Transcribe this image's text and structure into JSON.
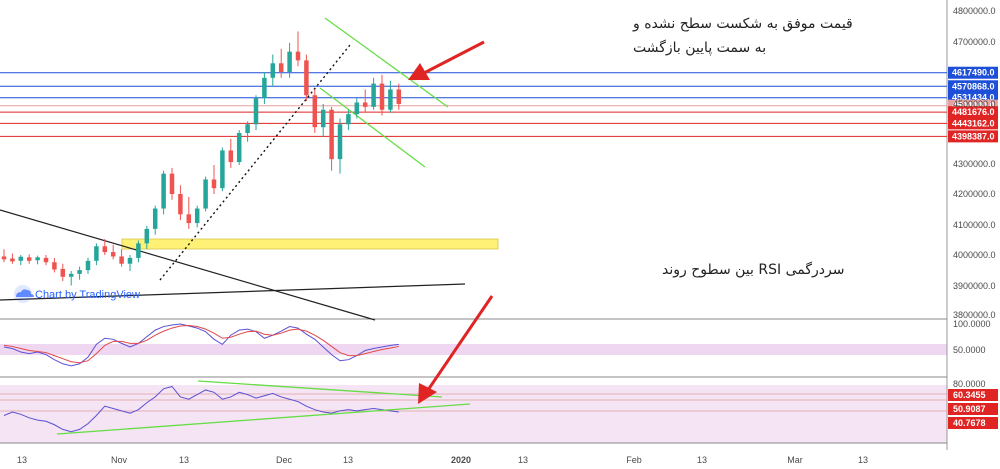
{
  "chart_data": [
    {
      "type": "candlestick",
      "title": "",
      "ylim": [
        3780000,
        4830000
      ],
      "y_ticks": [
        "4800000.0",
        "4700000.0",
        "4600000.0",
        "4500000.0",
        "4400000.0",
        "4300000.0",
        "4200000.0",
        "4100000.0",
        "4000000.0",
        "3900000.0",
        "3800000.0"
      ],
      "x_ticks": [
        "13",
        "Nov",
        "13",
        "Dec",
        "13",
        "2020",
        "13",
        "Feb",
        "13",
        "Mar",
        "13"
      ],
      "grid": false,
      "resistance_levels": [
        {
          "label": "4617490.0",
          "value": 4617490,
          "color": "#1e4fd8"
        },
        {
          "label": "4570868.0",
          "value": 4570868,
          "color": "#1e4fd8"
        },
        {
          "label": "4531434.0",
          "value": 4531434,
          "color": "#1e4fd8"
        },
        {
          "label": "4504000.0",
          "value": 4504000,
          "color": "#e8a0a0"
        }
      ],
      "support_levels": [
        {
          "label": "4481676.0",
          "value": 4481676,
          "color": "#e02424"
        },
        {
          "label": "4443162.0",
          "value": 4443162,
          "color": "#e02424"
        },
        {
          "label": "4398387.0",
          "value": 4398387,
          "color": "#e02424"
        }
      ],
      "candles": [
        {
          "o": 3985000,
          "h": 4010000,
          "l": 3965000,
          "c": 3975000
        },
        {
          "o": 3978000,
          "h": 3995000,
          "l": 3960000,
          "c": 3968000
        },
        {
          "o": 3970000,
          "h": 3990000,
          "l": 3955000,
          "c": 3984000
        },
        {
          "o": 3982000,
          "h": 3992000,
          "l": 3960000,
          "c": 3970000
        },
        {
          "o": 3972000,
          "h": 3988000,
          "l": 3958000,
          "c": 3982000
        },
        {
          "o": 3980000,
          "h": 3990000,
          "l": 3955000,
          "c": 3965000
        },
        {
          "o": 3965000,
          "h": 3980000,
          "l": 3930000,
          "c": 3940000
        },
        {
          "o": 3942000,
          "h": 3960000,
          "l": 3900000,
          "c": 3915000
        },
        {
          "o": 3915000,
          "h": 3935000,
          "l": 3885000,
          "c": 3925000
        },
        {
          "o": 3925000,
          "h": 3950000,
          "l": 3905000,
          "c": 3938000
        },
        {
          "o": 3938000,
          "h": 3980000,
          "l": 3925000,
          "c": 3970000
        },
        {
          "o": 3970000,
          "h": 4030000,
          "l": 3955000,
          "c": 4020000
        },
        {
          "o": 4020000,
          "h": 4045000,
          "l": 3990000,
          "c": 4000000
        },
        {
          "o": 4000000,
          "h": 4025000,
          "l": 3975000,
          "c": 3985000
        },
        {
          "o": 3985000,
          "h": 4010000,
          "l": 3950000,
          "c": 3960000
        },
        {
          "o": 3960000,
          "h": 3990000,
          "l": 3935000,
          "c": 3980000
        },
        {
          "o": 3980000,
          "h": 4040000,
          "l": 3965000,
          "c": 4030000
        },
        {
          "o": 4030000,
          "h": 4090000,
          "l": 4010000,
          "c": 4080000
        },
        {
          "o": 4080000,
          "h": 4160000,
          "l": 4060000,
          "c": 4150000
        },
        {
          "o": 4150000,
          "h": 4280000,
          "l": 4130000,
          "c": 4270000
        },
        {
          "o": 4270000,
          "h": 4290000,
          "l": 4180000,
          "c": 4200000
        },
        {
          "o": 4200000,
          "h": 4230000,
          "l": 4110000,
          "c": 4130000
        },
        {
          "o": 4130000,
          "h": 4190000,
          "l": 4080000,
          "c": 4100000
        },
        {
          "o": 4100000,
          "h": 4160000,
          "l": 4085000,
          "c": 4150000
        },
        {
          "o": 4150000,
          "h": 4260000,
          "l": 4140000,
          "c": 4250000
        },
        {
          "o": 4250000,
          "h": 4300000,
          "l": 4200000,
          "c": 4220000
        },
        {
          "o": 4220000,
          "h": 4360000,
          "l": 4210000,
          "c": 4350000
        },
        {
          "o": 4350000,
          "h": 4390000,
          "l": 4290000,
          "c": 4310000
        },
        {
          "o": 4310000,
          "h": 4420000,
          "l": 4300000,
          "c": 4410000
        },
        {
          "o": 4410000,
          "h": 4450000,
          "l": 4380000,
          "c": 4440000
        },
        {
          "o": 4440000,
          "h": 4540000,
          "l": 4420000,
          "c": 4530000
        },
        {
          "o": 4530000,
          "h": 4620000,
          "l": 4510000,
          "c": 4600000
        },
        {
          "o": 4600000,
          "h": 4680000,
          "l": 4570000,
          "c": 4650000
        },
        {
          "o": 4650000,
          "h": 4700000,
          "l": 4600000,
          "c": 4620000
        },
        {
          "o": 4620000,
          "h": 4720000,
          "l": 4600000,
          "c": 4690000
        },
        {
          "o": 4690000,
          "h": 4760000,
          "l": 4640000,
          "c": 4660000
        },
        {
          "o": 4660000,
          "h": 4680000,
          "l": 4520000,
          "c": 4540000
        },
        {
          "o": 4540000,
          "h": 4560000,
          "l": 4410000,
          "c": 4430000
        },
        {
          "o": 4430000,
          "h": 4510000,
          "l": 4400000,
          "c": 4490000
        },
        {
          "o": 4490000,
          "h": 4500000,
          "l": 4280000,
          "c": 4320000
        },
        {
          "o": 4320000,
          "h": 4460000,
          "l": 4270000,
          "c": 4440000
        },
        {
          "o": 4440000,
          "h": 4490000,
          "l": 4420000,
          "c": 4475000
        },
        {
          "o": 4475000,
          "h": 4530000,
          "l": 4460000,
          "c": 4515000
        },
        {
          "o": 4515000,
          "h": 4560000,
          "l": 4480000,
          "c": 4500000
        },
        {
          "o": 4500000,
          "h": 4600000,
          "l": 4490000,
          "c": 4580000
        },
        {
          "o": 4580000,
          "h": 4610000,
          "l": 4470000,
          "c": 4490000
        },
        {
          "o": 4490000,
          "h": 4590000,
          "l": 4480000,
          "c": 4560000
        },
        {
          "o": 4560000,
          "h": 4580000,
          "l": 4490000,
          "c": 4510000
        }
      ],
      "annotations": [
        "قیمت موفق به شکست سطح نشده و",
        "به سمت پایین بازگشت",
        "سردرگمی RSI بین سطوح روند"
      ],
      "watermark": "Chart by TradingView"
    },
    {
      "type": "line",
      "ylim": [
        0,
        100
      ],
      "y_ticks": [
        "100.0000",
        "50.0000"
      ],
      "series": [
        {
          "color": "#5b4fd6",
          "values": [
            55,
            52,
            45,
            42,
            45,
            40,
            30,
            22,
            18,
            22,
            35,
            60,
            72,
            70,
            62,
            55,
            62,
            75,
            88,
            95,
            98,
            100,
            96,
            92,
            85,
            70,
            60,
            78,
            88,
            90,
            85,
            72,
            78,
            86,
            95,
            92,
            80,
            70,
            55,
            40,
            28,
            30,
            38,
            48,
            52,
            55,
            58,
            60
          ]
        },
        {
          "color": "#e04848",
          "values": [
            58,
            56,
            52,
            48,
            46,
            44,
            38,
            32,
            26,
            24,
            28,
            42,
            58,
            66,
            66,
            62,
            62,
            68,
            78,
            86,
            92,
            96,
            97,
            95,
            90,
            82,
            72,
            74,
            80,
            85,
            86,
            80,
            78,
            82,
            88,
            90,
            86,
            78,
            68,
            56,
            44,
            38,
            38,
            42,
            46,
            50,
            53,
            56
          ]
        }
      ]
    },
    {
      "type": "line",
      "ylim": [
        30,
        80
      ],
      "y_ticks": [
        "80.0000",
        "60.3455",
        "50.9087",
        "40.7678"
      ],
      "series": [
        {
          "color": "#5b4fd6",
          "values": [
            52,
            55,
            53,
            50,
            48,
            47,
            44,
            40,
            38,
            40,
            45,
            52,
            60,
            58,
            56,
            54,
            57,
            63,
            68,
            75,
            77,
            68,
            66,
            70,
            74,
            72,
            66,
            68,
            72,
            70,
            67,
            69,
            71,
            68,
            66,
            64,
            60,
            57,
            55,
            54,
            56,
            57,
            56,
            57,
            58,
            57,
            56,
            55
          ]
        }
      ]
    }
  ],
  "colors": {
    "bull": "#26a69a",
    "bear": "#ef5350",
    "resistance": "#1e4fd8",
    "support": "#e02424",
    "trend_green": "#66dd44",
    "arrow": "#e02424",
    "zone": "#fff176"
  }
}
